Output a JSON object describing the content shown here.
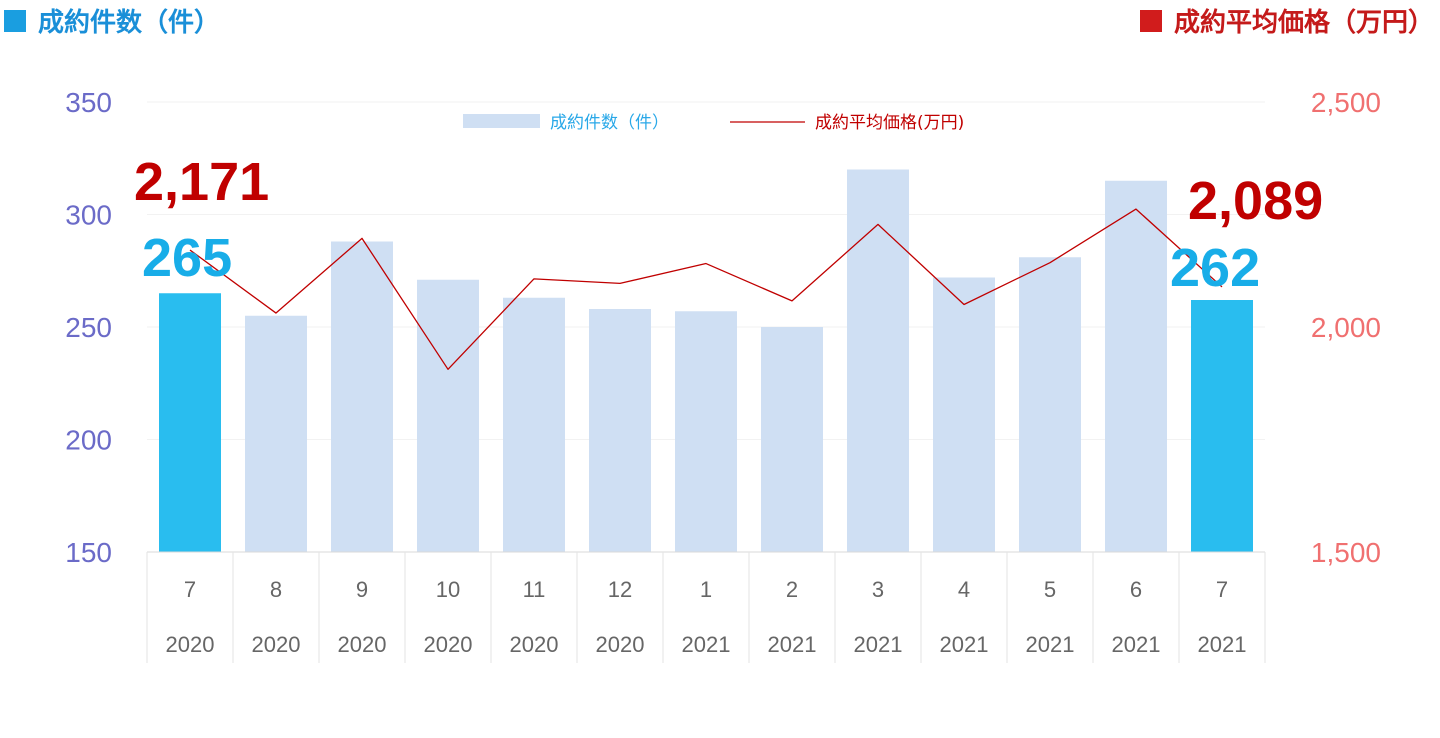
{
  "header": {
    "left_title": "成約件数（件）",
    "right_title": "成約平均価格（万円）"
  },
  "colors": {
    "bar_default": "#cfdff3",
    "bar_highlight": "#29bdef",
    "line": "#c00000",
    "left_axis_text": "#6b6bc8",
    "right_axis_text": "#f07070",
    "callout_count": "#18ade8",
    "callout_price": "#c00000"
  },
  "chart_data": {
    "type": "bar",
    "categories": [
      "7",
      "8",
      "9",
      "10",
      "11",
      "12",
      "1",
      "2",
      "3",
      "4",
      "5",
      "6",
      "7"
    ],
    "category_years": [
      "2020",
      "2020",
      "2020",
      "2020",
      "2020",
      "2020",
      "2021",
      "2021",
      "2021",
      "2021",
      "2021",
      "2021",
      "2021"
    ],
    "series": [
      {
        "name": "成約件数（件）",
        "type": "bar",
        "axis": "left",
        "values": [
          265,
          255,
          288,
          271,
          263,
          258,
          257,
          250,
          320,
          272,
          281,
          315,
          262
        ],
        "highlight_indices": [
          0,
          12
        ]
      },
      {
        "name": "成約平均価格(万円)",
        "type": "line",
        "axis": "right",
        "values": [
          2171,
          2031,
          2197,
          1906,
          2107,
          2097,
          2141,
          2058,
          2228,
          2050,
          2143,
          2262,
          2089
        ]
      }
    ],
    "y_left": {
      "ylim": [
        150,
        350
      ],
      "ticks": [
        "350",
        "300",
        "250",
        "200",
        "150"
      ]
    },
    "y_right": {
      "ylim": [
        1500,
        2500
      ],
      "ticks": [
        "2,500",
        "2,000",
        "1,500"
      ]
    },
    "legend_position": "top-center",
    "grid": true,
    "annotations": {
      "first_price": "2,171",
      "last_price": "2,089",
      "first_count": "265",
      "last_count": "262"
    }
  }
}
